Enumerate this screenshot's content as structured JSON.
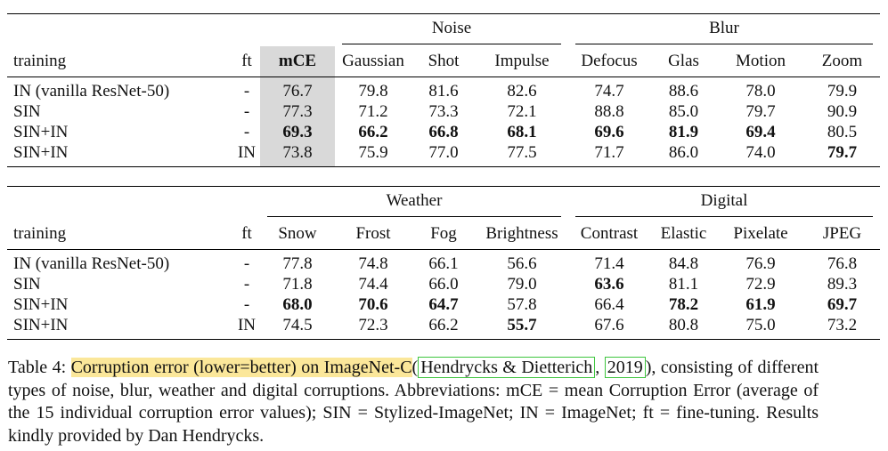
{
  "table1": {
    "groups": [
      "Noise",
      "Blur"
    ],
    "headers": [
      "training",
      "ft",
      "mCE",
      "Gaussian",
      "Shot",
      "Impulse",
      "Defocus",
      "Glas",
      "Motion",
      "Zoom"
    ],
    "rows": [
      [
        "IN (vanilla ResNet-50)",
        "-",
        "76.7",
        "79.8",
        "81.6",
        "82.6",
        "74.7",
        "88.6",
        "78.0",
        "79.9"
      ],
      [
        "SIN",
        "-",
        "77.3",
        "71.2",
        "73.3",
        "72.1",
        "88.8",
        "85.0",
        "79.7",
        "90.9"
      ],
      [
        "SIN+IN",
        "-",
        "69.3",
        "66.2",
        "66.8",
        "68.1",
        "69.6",
        "81.9",
        "69.4",
        "80.5"
      ],
      [
        "SIN+IN",
        "IN",
        "73.8",
        "75.9",
        "77.0",
        "77.5",
        "71.7",
        "86.0",
        "74.0",
        "79.7"
      ]
    ]
  },
  "table2": {
    "groups": [
      "Weather",
      "Digital"
    ],
    "headers": [
      "training",
      "ft",
      "Snow",
      "Frost",
      "Fog",
      "Brightness",
      "Contrast",
      "Elastic",
      "Pixelate",
      "JPEG"
    ],
    "rows": [
      [
        "IN (vanilla ResNet-50)",
        "-",
        "77.8",
        "74.8",
        "66.1",
        "56.6",
        "71.4",
        "84.8",
        "76.9",
        "76.8"
      ],
      [
        "SIN",
        "-",
        "71.8",
        "74.4",
        "66.0",
        "79.0",
        "63.6",
        "81.1",
        "72.9",
        "89.3"
      ],
      [
        "SIN+IN",
        "-",
        "68.0",
        "70.6",
        "64.7",
        "57.8",
        "66.4",
        "78.2",
        "61.9",
        "69.7"
      ],
      [
        "SIN+IN",
        "IN",
        "74.5",
        "72.3",
        "66.2",
        "55.7",
        "67.6",
        "80.8",
        "75.0",
        "73.2"
      ]
    ]
  },
  "caption": {
    "label": "Table 4:",
    "highlight": "Corruption error (lower=better) on ImageNet-C",
    "open_paren": "(",
    "cite_author": "Hendrycks & Dietterich",
    "cite_sep": ", ",
    "cite_year": "2019",
    "rest": "), consisting of different types of noise, blur, weather and digital corruptions. Abbreviations: mCE = mean Corruption Error (average of the 15 individual corruption error values); SIN = Stylized-ImageNet; IN = ImageNet; ft = fine-tuning. Results kindly provided by Dan Hendrycks."
  }
}
